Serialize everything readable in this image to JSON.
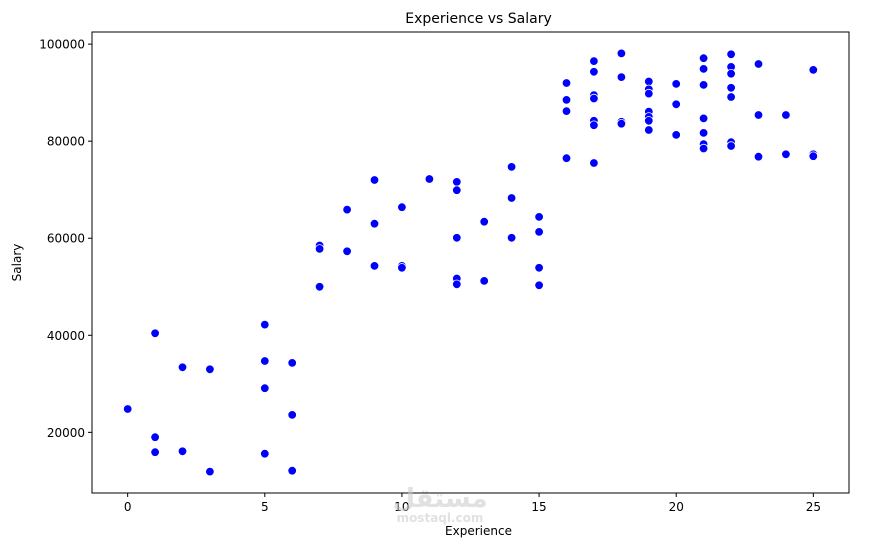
{
  "chart_data": {
    "type": "scatter",
    "title": "Experience vs Salary",
    "xlabel": "Experience",
    "ylabel": "Salary",
    "xlim": [
      -1.3,
      26.3
    ],
    "ylim": [
      7500,
      102500
    ],
    "xticks": [
      0,
      5,
      10,
      15,
      20,
      25
    ],
    "yticks": [
      20000,
      40000,
      60000,
      80000,
      100000
    ],
    "grid": false,
    "marker_color": "#0000ff",
    "points": [
      {
        "x": 0,
        "y": 24800
      },
      {
        "x": 1,
        "y": 40400
      },
      {
        "x": 1,
        "y": 19000
      },
      {
        "x": 1,
        "y": 15900
      },
      {
        "x": 2,
        "y": 33400
      },
      {
        "x": 2,
        "y": 16100
      },
      {
        "x": 3,
        "y": 33000
      },
      {
        "x": 3,
        "y": 11900
      },
      {
        "x": 5,
        "y": 42200
      },
      {
        "x": 5,
        "y": 34700
      },
      {
        "x": 5,
        "y": 29100
      },
      {
        "x": 5,
        "y": 15600
      },
      {
        "x": 6,
        "y": 34300
      },
      {
        "x": 6,
        "y": 23600
      },
      {
        "x": 6,
        "y": 12100
      },
      {
        "x": 7,
        "y": 58500
      },
      {
        "x": 7,
        "y": 57800
      },
      {
        "x": 7,
        "y": 50000
      },
      {
        "x": 8,
        "y": 65900
      },
      {
        "x": 8,
        "y": 57300
      },
      {
        "x": 9,
        "y": 72000
      },
      {
        "x": 9,
        "y": 63000
      },
      {
        "x": 9,
        "y": 54300
      },
      {
        "x": 10,
        "y": 66400
      },
      {
        "x": 10,
        "y": 54300
      },
      {
        "x": 10,
        "y": 53900
      },
      {
        "x": 11,
        "y": 72200
      },
      {
        "x": 12,
        "y": 71600
      },
      {
        "x": 12,
        "y": 69900
      },
      {
        "x": 12,
        "y": 60100
      },
      {
        "x": 12,
        "y": 51700
      },
      {
        "x": 12,
        "y": 50500
      },
      {
        "x": 13,
        "y": 63400
      },
      {
        "x": 13,
        "y": 51200
      },
      {
        "x": 14,
        "y": 74700
      },
      {
        "x": 14,
        "y": 68300
      },
      {
        "x": 14,
        "y": 60100
      },
      {
        "x": 15,
        "y": 64400
      },
      {
        "x": 15,
        "y": 61300
      },
      {
        "x": 15,
        "y": 53900
      },
      {
        "x": 15,
        "y": 50300
      },
      {
        "x": 16,
        "y": 92000
      },
      {
        "x": 16,
        "y": 88500
      },
      {
        "x": 16,
        "y": 86200
      },
      {
        "x": 16,
        "y": 76500
      },
      {
        "x": 17,
        "y": 96500
      },
      {
        "x": 17,
        "y": 94300
      },
      {
        "x": 17,
        "y": 89500
      },
      {
        "x": 17,
        "y": 88800
      },
      {
        "x": 17,
        "y": 84200
      },
      {
        "x": 17,
        "y": 83300
      },
      {
        "x": 17,
        "y": 75500
      },
      {
        "x": 18,
        "y": 98100
      },
      {
        "x": 18,
        "y": 93200
      },
      {
        "x": 18,
        "y": 84000
      },
      {
        "x": 18,
        "y": 83600
      },
      {
        "x": 19,
        "y": 92300
      },
      {
        "x": 19,
        "y": 90700
      },
      {
        "x": 19,
        "y": 89800
      },
      {
        "x": 19,
        "y": 86100
      },
      {
        "x": 19,
        "y": 85000
      },
      {
        "x": 19,
        "y": 84200
      },
      {
        "x": 19,
        "y": 82300
      },
      {
        "x": 20,
        "y": 91800
      },
      {
        "x": 20,
        "y": 87600
      },
      {
        "x": 20,
        "y": 81300
      },
      {
        "x": 21,
        "y": 97100
      },
      {
        "x": 21,
        "y": 94900
      },
      {
        "x": 21,
        "y": 91600
      },
      {
        "x": 21,
        "y": 84700
      },
      {
        "x": 21,
        "y": 81700
      },
      {
        "x": 21,
        "y": 79400
      },
      {
        "x": 21,
        "y": 78500
      },
      {
        "x": 22,
        "y": 97900
      },
      {
        "x": 22,
        "y": 95300
      },
      {
        "x": 22,
        "y": 93900
      },
      {
        "x": 22,
        "y": 91000
      },
      {
        "x": 22,
        "y": 89100
      },
      {
        "x": 22,
        "y": 79800
      },
      {
        "x": 22,
        "y": 79000
      },
      {
        "x": 23,
        "y": 95900
      },
      {
        "x": 23,
        "y": 85400
      },
      {
        "x": 23,
        "y": 76800
      },
      {
        "x": 24,
        "y": 85400
      },
      {
        "x": 24,
        "y": 77300
      },
      {
        "x": 25,
        "y": 94700
      },
      {
        "x": 25,
        "y": 77300
      },
      {
        "x": 25,
        "y": 76900
      }
    ]
  },
  "watermark": {
    "arabic": "مستقل",
    "latin": "mostaql.com"
  }
}
